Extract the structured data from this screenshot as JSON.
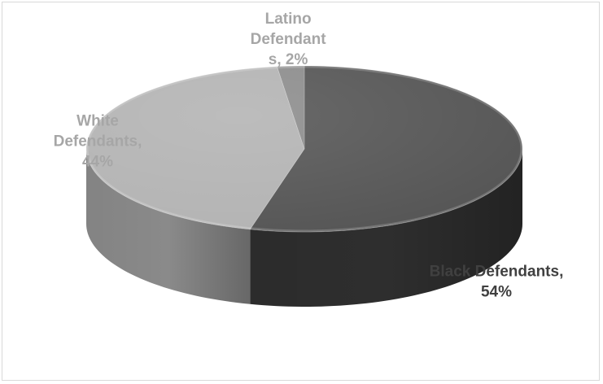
{
  "chart_data": {
    "type": "pie",
    "style": "3d",
    "title": "",
    "slices": [
      {
        "label_lines": [
          "Black Defendants,",
          "54%"
        ],
        "value": 54,
        "color": "#555555",
        "side_color": "#2e2e2e",
        "label_color": "#404040"
      },
      {
        "label_lines": [
          "White",
          "Defendants,",
          "44%"
        ],
        "value": 44,
        "color": "#b3b3b3",
        "side_color": "#8a8a8a",
        "label_color": "#a6a6a6"
      },
      {
        "label_lines": [
          "Latino",
          "Defendant",
          "s, 2%"
        ],
        "value": 2,
        "color": "#8c8c8c",
        "side_color": "#6b6b6b",
        "label_color": "#a6a6a6"
      }
    ],
    "legend": "none",
    "data_labels": "outside"
  }
}
